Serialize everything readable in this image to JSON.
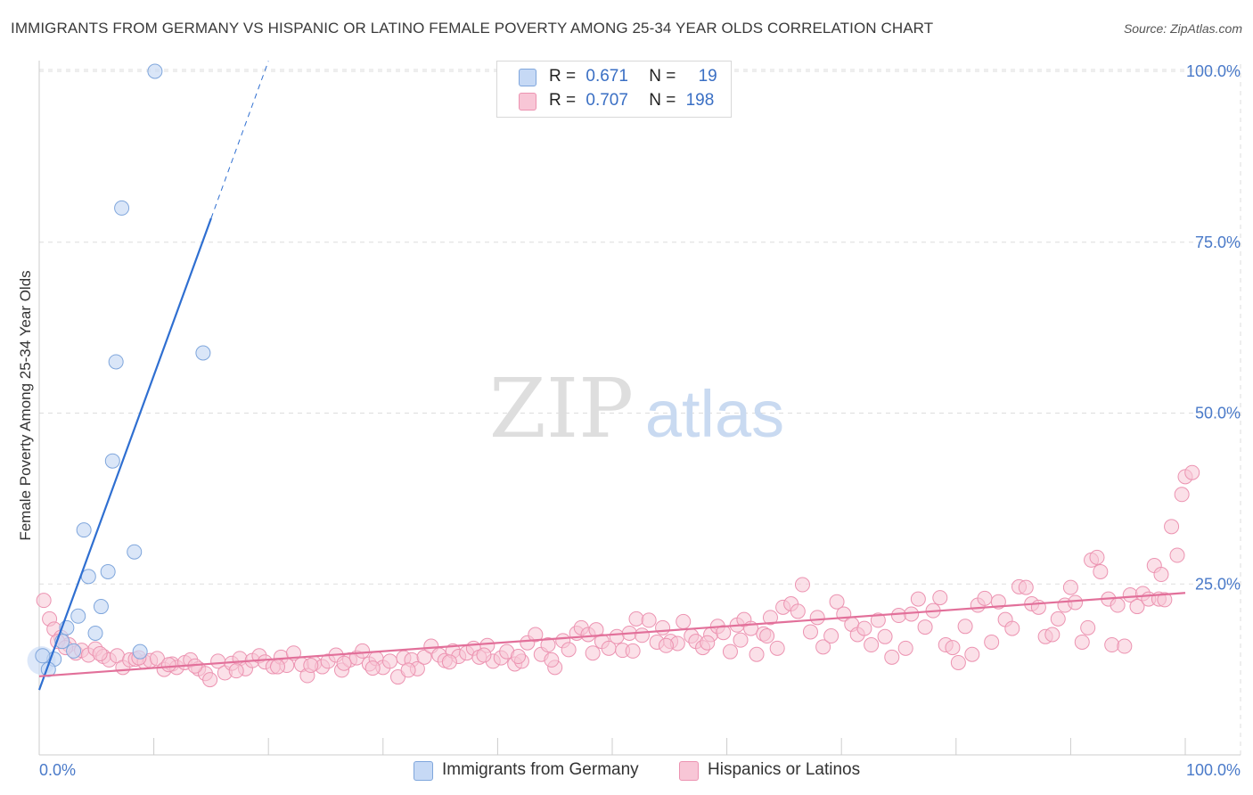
{
  "title": "IMMIGRANTS FROM GERMANY VS HISPANIC OR LATINO FEMALE POVERTY AMONG 25-34 YEAR OLDS CORRELATION CHART",
  "source": "Source: ZipAtlas.com",
  "watermark": {
    "zip": "ZIP",
    "atlas": "atlas"
  },
  "legend_box": [
    {
      "r_label": "R =",
      "r_value": "0.671",
      "n_label": "N =",
      "n_value": "19"
    },
    {
      "r_label": "R =",
      "r_value": "0.707",
      "n_label": "N =",
      "n_value": "198"
    }
  ],
  "colors": {
    "blue_fill": "#c6d9f5",
    "blue_stroke": "#7fa6dc",
    "blue_line": "#2f6fd1",
    "pink_fill": "#f8c6d6",
    "pink_stroke": "#ec93b1",
    "pink_line": "#e2709a",
    "tick_label": "#4a7ac9",
    "grid": "#dddddd"
  },
  "chart_data": {
    "type": "scatter",
    "title": "IMMIGRANTS FROM GERMANY VS HISPANIC OR LATINO FEMALE POVERTY AMONG 25-34 YEAR OLDS CORRELATION CHART",
    "xlabel": "",
    "ylabel": "Female Poverty Among 25-34 Year Olds",
    "xlim": [
      0,
      100
    ],
    "ylim": [
      0,
      100
    ],
    "x_tick_labels": [
      "0.0%",
      "100.0%"
    ],
    "y_tick_labels": [
      {
        "value": 25,
        "label": "25.0%"
      },
      {
        "value": 50,
        "label": "50.0%"
      },
      {
        "value": 75,
        "label": "75.0%"
      },
      {
        "value": 100,
        "label": "100.0%"
      }
    ],
    "series": [
      {
        "name": "Immigrants from Germany",
        "color": "#c6d9f5",
        "R": 0.671,
        "N": 19,
        "trend": {
          "x0": 0,
          "y0": 9.5,
          "x1": 15,
          "y1": 78.5,
          "dash_to_x": 20,
          "dash_to_y": 101.5
        },
        "points": [
          [
            10.1,
            100.0
          ],
          [
            7.2,
            80.0
          ],
          [
            6.7,
            57.5
          ],
          [
            14.3,
            58.8
          ],
          [
            6.4,
            43.0
          ],
          [
            3.9,
            32.9
          ],
          [
            8.3,
            29.7
          ],
          [
            6.0,
            26.8
          ],
          [
            4.3,
            26.1
          ],
          [
            5.4,
            21.7
          ],
          [
            3.4,
            20.3
          ],
          [
            4.9,
            17.8
          ],
          [
            2.4,
            18.6
          ],
          [
            2.0,
            16.6
          ],
          [
            3.0,
            15.2
          ],
          [
            8.8,
            15.1
          ],
          [
            1.3,
            14.0
          ],
          [
            0.3,
            14.5
          ],
          [
            0.8,
            12.5
          ]
        ]
      },
      {
        "name": "Hispanics or Latinos",
        "color": "#f8c6d6",
        "R": 0.707,
        "N": 198,
        "trend": {
          "x0": 0,
          "y0": 11.5,
          "x1": 100,
          "y1": 23.7
        },
        "points": [
          [
            0.4,
            22.6
          ],
          [
            0.9,
            19.9
          ],
          [
            1.3,
            18.4
          ],
          [
            1.9,
            17.2
          ],
          [
            2.6,
            16.1
          ],
          [
            3.2,
            14.9
          ],
          [
            3.7,
            15.3
          ],
          [
            4.3,
            14.6
          ],
          [
            4.9,
            15.5
          ],
          [
            5.6,
            14.4
          ],
          [
            6.1,
            13.9
          ],
          [
            6.8,
            14.5
          ],
          [
            7.3,
            12.8
          ],
          [
            7.9,
            13.9
          ],
          [
            8.4,
            14.0
          ],
          [
            9.2,
            13.6
          ],
          [
            9.7,
            13.8
          ],
          [
            10.3,
            14.1
          ],
          [
            10.9,
            12.5
          ],
          [
            11.6,
            13.3
          ],
          [
            12.0,
            12.8
          ],
          [
            12.7,
            13.5
          ],
          [
            13.2,
            13.9
          ],
          [
            13.9,
            12.6
          ],
          [
            14.5,
            11.9
          ],
          [
            14.9,
            11.0
          ],
          [
            15.6,
            13.7
          ],
          [
            16.2,
            12.0
          ],
          [
            16.8,
            13.4
          ],
          [
            17.5,
            14.1
          ],
          [
            18.0,
            12.6
          ],
          [
            18.6,
            13.8
          ],
          [
            19.2,
            14.5
          ],
          [
            19.7,
            13.6
          ],
          [
            20.4,
            12.9
          ],
          [
            21.1,
            14.3
          ],
          [
            21.6,
            13.1
          ],
          [
            22.2,
            14.9
          ],
          [
            22.9,
            13.2
          ],
          [
            23.4,
            11.6
          ],
          [
            24.0,
            13.4
          ],
          [
            24.7,
            12.9
          ],
          [
            25.2,
            13.7
          ],
          [
            25.9,
            14.6
          ],
          [
            26.4,
            12.4
          ],
          [
            27.1,
            13.9
          ],
          [
            27.7,
            14.2
          ],
          [
            28.2,
            15.2
          ],
          [
            28.8,
            13.3
          ],
          [
            29.4,
            14.1
          ],
          [
            30.0,
            12.8
          ],
          [
            30.6,
            13.7
          ],
          [
            31.3,
            11.4
          ],
          [
            31.8,
            14.2
          ],
          [
            32.5,
            13.9
          ],
          [
            33.0,
            12.6
          ],
          [
            33.6,
            14.3
          ],
          [
            34.2,
            15.9
          ],
          [
            34.9,
            14.6
          ],
          [
            35.4,
            13.8
          ],
          [
            36.1,
            15.2
          ],
          [
            36.6,
            14.4
          ],
          [
            37.3,
            14.9
          ],
          [
            37.9,
            15.6
          ],
          [
            38.4,
            14.3
          ],
          [
            39.1,
            16.0
          ],
          [
            39.6,
            13.7
          ],
          [
            40.3,
            14.2
          ],
          [
            40.8,
            15.1
          ],
          [
            41.5,
            13.3
          ],
          [
            42.1,
            13.7
          ],
          [
            42.6,
            16.4
          ],
          [
            43.3,
            17.6
          ],
          [
            43.8,
            14.7
          ],
          [
            44.4,
            16.1
          ],
          [
            45.0,
            12.8
          ],
          [
            45.7,
            16.7
          ],
          [
            46.2,
            15.4
          ],
          [
            46.9,
            17.8
          ],
          [
            47.3,
            18.6
          ],
          [
            47.9,
            17.6
          ],
          [
            48.6,
            18.3
          ],
          [
            49.1,
            16.6
          ],
          [
            49.7,
            15.6
          ],
          [
            50.4,
            17.3
          ],
          [
            50.9,
            15.3
          ],
          [
            51.5,
            17.8
          ],
          [
            52.1,
            19.9
          ],
          [
            52.6,
            17.5
          ],
          [
            53.2,
            19.7
          ],
          [
            53.9,
            16.5
          ],
          [
            54.4,
            18.6
          ],
          [
            55.1,
            16.6
          ],
          [
            55.7,
            16.3
          ],
          [
            56.2,
            19.5
          ],
          [
            56.9,
            17.4
          ],
          [
            57.3,
            16.6
          ],
          [
            57.9,
            15.7
          ],
          [
            58.6,
            17.6
          ],
          [
            59.2,
            18.8
          ],
          [
            59.7,
            17.9
          ],
          [
            60.3,
            15.1
          ],
          [
            60.9,
            19.0
          ],
          [
            61.5,
            19.8
          ],
          [
            62.1,
            18.5
          ],
          [
            62.6,
            14.7
          ],
          [
            63.2,
            17.7
          ],
          [
            63.8,
            20.1
          ],
          [
            64.4,
            15.6
          ],
          [
            64.9,
            21.6
          ],
          [
            65.6,
            22.1
          ],
          [
            66.2,
            21.0
          ],
          [
            66.6,
            24.9
          ],
          [
            67.3,
            18.0
          ],
          [
            67.9,
            20.1
          ],
          [
            68.4,
            15.8
          ],
          [
            69.1,
            17.4
          ],
          [
            69.6,
            22.4
          ],
          [
            70.2,
            20.6
          ],
          [
            70.9,
            19.1
          ],
          [
            71.4,
            17.6
          ],
          [
            72.0,
            18.5
          ],
          [
            72.6,
            16.1
          ],
          [
            73.2,
            19.7
          ],
          [
            73.8,
            17.3
          ],
          [
            74.4,
            14.3
          ],
          [
            75.0,
            20.4
          ],
          [
            75.6,
            15.6
          ],
          [
            76.1,
            20.6
          ],
          [
            76.7,
            22.8
          ],
          [
            77.3,
            18.7
          ],
          [
            78.0,
            21.1
          ],
          [
            78.6,
            23.0
          ],
          [
            79.1,
            16.1
          ],
          [
            79.7,
            15.7
          ],
          [
            80.2,
            13.5
          ],
          [
            80.8,
            18.8
          ],
          [
            81.4,
            14.7
          ],
          [
            81.9,
            21.9
          ],
          [
            82.5,
            22.9
          ],
          [
            83.1,
            16.5
          ],
          [
            83.7,
            22.4
          ],
          [
            84.3,
            19.8
          ],
          [
            84.9,
            18.5
          ],
          [
            85.5,
            24.6
          ],
          [
            86.1,
            24.5
          ],
          [
            86.6,
            22.1
          ],
          [
            87.2,
            21.6
          ],
          [
            87.8,
            17.3
          ],
          [
            88.4,
            17.6
          ],
          [
            88.9,
            19.9
          ],
          [
            89.5,
            21.9
          ],
          [
            90.0,
            24.5
          ],
          [
            90.4,
            22.3
          ],
          [
            91.0,
            16.5
          ],
          [
            91.5,
            18.6
          ],
          [
            91.8,
            28.5
          ],
          [
            92.3,
            28.9
          ],
          [
            92.6,
            26.8
          ],
          [
            93.3,
            22.8
          ],
          [
            93.6,
            16.1
          ],
          [
            94.1,
            21.9
          ],
          [
            94.7,
            15.9
          ],
          [
            95.2,
            23.4
          ],
          [
            95.8,
            21.7
          ],
          [
            96.3,
            23.6
          ],
          [
            96.8,
            22.8
          ],
          [
            97.3,
            27.7
          ],
          [
            97.7,
            22.8
          ],
          [
            97.9,
            26.4
          ],
          [
            98.2,
            22.7
          ],
          [
            98.8,
            33.4
          ],
          [
            99.3,
            29.2
          ],
          [
            99.7,
            38.1
          ],
          [
            100.0,
            40.7
          ],
          [
            100.6,
            41.3
          ],
          [
            1.6,
            16.6
          ],
          [
            2.3,
            15.7
          ],
          [
            5.3,
            14.8
          ],
          [
            8.7,
            14.2
          ],
          [
            11.3,
            13.2
          ],
          [
            13.6,
            13.0
          ],
          [
            17.2,
            12.3
          ],
          [
            20.8,
            12.9
          ],
          [
            23.7,
            13.1
          ],
          [
            26.6,
            13.4
          ],
          [
            29.1,
            12.7
          ],
          [
            32.2,
            12.4
          ],
          [
            35.8,
            13.6
          ],
          [
            38.8,
            14.6
          ],
          [
            41.8,
            14.4
          ],
          [
            44.7,
            13.9
          ],
          [
            48.3,
            14.9
          ],
          [
            51.8,
            15.2
          ],
          [
            54.7,
            16.0
          ],
          [
            58.3,
            16.4
          ],
          [
            61.2,
            16.8
          ],
          [
            63.5,
            17.4
          ]
        ]
      }
    ]
  },
  "bottom_legend": [
    "Immigrants from Germany",
    "Hispanics or Latinos"
  ]
}
